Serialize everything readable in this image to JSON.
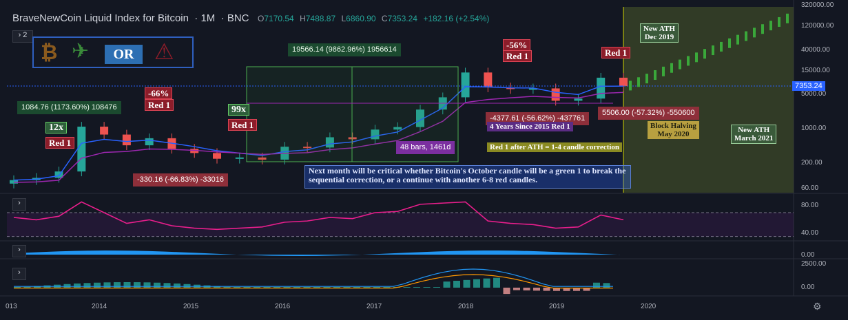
{
  "header": {
    "title": "BraveNewCoin Liquid Index for Bitcoin",
    "interval": "1M",
    "exchange": "BNC",
    "o_label": "O",
    "o_value": "7170.54",
    "h_label": "H",
    "h_value": "7488.87",
    "l_label": "L",
    "l_value": "6860.90",
    "c_label": "C",
    "c_value": "7353.24",
    "change": "+182.16 (+2.54%)"
  },
  "toolbar": {
    "collapse_label": "2",
    "or_label": "OR"
  },
  "price_tag": "7353.24",
  "annotations": {
    "measure_big": "19566.14 (9862.96%) 1956614",
    "measure_2013": "1084.76 (1173.60%) 108476",
    "measure_2015": "-330.16 (-66.83%) -33016",
    "measure_2018": "-4377.61 (-56.62%) -437761",
    "measure_2019": "5506.00 (-57.32%) -550600",
    "bars": "48 bars, 1461d",
    "four_years": "4 Years Since 2015 Red 1",
    "correction_rule": "Red 1 after ATH = 1-4 candle correction",
    "mult_12x": "12x",
    "mult_99x": "99x",
    "pct_66": "-66%",
    "pct_56": "-56%",
    "red1": "Red 1",
    "ath_2019_1": "New ATH",
    "ath_2019_2": "Dec 2019",
    "ath_2021_1": "New ATH",
    "ath_2021_2": "March 2021",
    "halving_1": "Block Halving",
    "halving_2": "May 2020",
    "note": "Next month will be critical whether Bitcoin's October candle will be a green 1 to break the sequential correction, or a continue with another 6-8 red candles."
  },
  "price_axis": [
    "320000.00",
    "120000.00",
    "40000.00",
    "15000.00",
    "5000.00",
    "1000.00",
    "200.00",
    "60.00"
  ],
  "rsi_axis": [
    "80.00",
    "40.00"
  ],
  "osc_axis": [
    "0.00"
  ],
  "macd_axis": [
    "2500.00",
    "0.00"
  ],
  "time_axis": [
    "013",
    "2014",
    "2015",
    "2016",
    "2017",
    "2018",
    "2019",
    "2020"
  ],
  "chart_data": {
    "type": "candlestick",
    "title": "BraveNewCoin Liquid Index for Bitcoin",
    "scale": "log",
    "ylim": [
      50,
      320000
    ],
    "x": [
      "2013-03",
      "2013-06",
      "2013-09",
      "2013-11",
      "2013-12",
      "2014-03",
      "2014-06",
      "2014-09",
      "2014-12",
      "2015-03",
      "2015-06",
      "2015-09",
      "2015-12",
      "2016-03",
      "2016-06",
      "2016-09",
      "2016-12",
      "2017-03",
      "2017-06",
      "2017-09",
      "2017-12",
      "2018-03",
      "2018-06",
      "2018-09",
      "2018-12",
      "2019-03",
      "2019-06",
      "2019-09"
    ],
    "close": [
      90,
      100,
      135,
      1100,
      760,
      460,
      640,
      390,
      320,
      245,
      260,
      235,
      430,
      415,
      670,
      610,
      960,
      1080,
      2450,
      4350,
      13900,
      6900,
      6400,
      6600,
      3700,
      4100,
      10900,
      7353
    ],
    "rsi": [
      62,
      58,
      64,
      88,
      70,
      52,
      58,
      48,
      44,
      42,
      44,
      46,
      54,
      56,
      62,
      60,
      70,
      72,
      84,
      86,
      88,
      56,
      52,
      50,
      44,
      46,
      66,
      58
    ],
    "series": [
      {
        "name": "SMA fast",
        "color": "#2962ff"
      },
      {
        "name": "SMA slow",
        "color": "#9c27b0"
      }
    ]
  },
  "colors": {
    "up": "#26a69a",
    "down": "#ef5350",
    "rsi": "#e91e8c",
    "macd": "#2196f3",
    "signal": "#ff9800"
  }
}
